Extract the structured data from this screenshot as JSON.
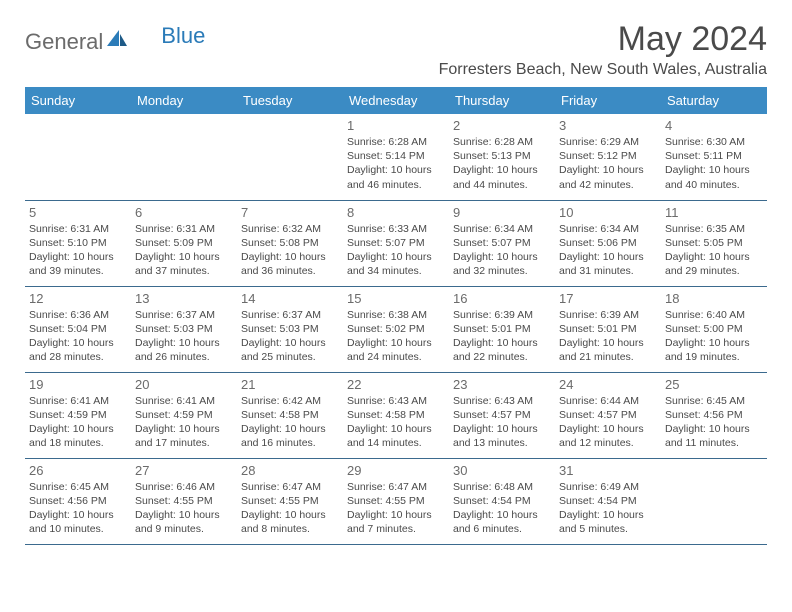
{
  "logo": {
    "text1": "General",
    "text2": "Blue"
  },
  "month_title": "May 2024",
  "location": "Forresters Beach, New South Wales, Australia",
  "colors": {
    "header_bg": "#3b8bc4",
    "border": "#3b6a8e",
    "logo_gray": "#6b6b6b",
    "logo_blue": "#2b7bb8",
    "text_dark": "#4a4a4a"
  },
  "day_headers": [
    "Sunday",
    "Monday",
    "Tuesday",
    "Wednesday",
    "Thursday",
    "Friday",
    "Saturday"
  ],
  "weeks": [
    [
      null,
      null,
      null,
      {
        "n": "1",
        "sr": "6:28 AM",
        "ss": "5:14 PM",
        "dl": "10 hours and 46 minutes."
      },
      {
        "n": "2",
        "sr": "6:28 AM",
        "ss": "5:13 PM",
        "dl": "10 hours and 44 minutes."
      },
      {
        "n": "3",
        "sr": "6:29 AM",
        "ss": "5:12 PM",
        "dl": "10 hours and 42 minutes."
      },
      {
        "n": "4",
        "sr": "6:30 AM",
        "ss": "5:11 PM",
        "dl": "10 hours and 40 minutes."
      }
    ],
    [
      {
        "n": "5",
        "sr": "6:31 AM",
        "ss": "5:10 PM",
        "dl": "10 hours and 39 minutes."
      },
      {
        "n": "6",
        "sr": "6:31 AM",
        "ss": "5:09 PM",
        "dl": "10 hours and 37 minutes."
      },
      {
        "n": "7",
        "sr": "6:32 AM",
        "ss": "5:08 PM",
        "dl": "10 hours and 36 minutes."
      },
      {
        "n": "8",
        "sr": "6:33 AM",
        "ss": "5:07 PM",
        "dl": "10 hours and 34 minutes."
      },
      {
        "n": "9",
        "sr": "6:34 AM",
        "ss": "5:07 PM",
        "dl": "10 hours and 32 minutes."
      },
      {
        "n": "10",
        "sr": "6:34 AM",
        "ss": "5:06 PM",
        "dl": "10 hours and 31 minutes."
      },
      {
        "n": "11",
        "sr": "6:35 AM",
        "ss": "5:05 PM",
        "dl": "10 hours and 29 minutes."
      }
    ],
    [
      {
        "n": "12",
        "sr": "6:36 AM",
        "ss": "5:04 PM",
        "dl": "10 hours and 28 minutes."
      },
      {
        "n": "13",
        "sr": "6:37 AM",
        "ss": "5:03 PM",
        "dl": "10 hours and 26 minutes."
      },
      {
        "n": "14",
        "sr": "6:37 AM",
        "ss": "5:03 PM",
        "dl": "10 hours and 25 minutes."
      },
      {
        "n": "15",
        "sr": "6:38 AM",
        "ss": "5:02 PM",
        "dl": "10 hours and 24 minutes."
      },
      {
        "n": "16",
        "sr": "6:39 AM",
        "ss": "5:01 PM",
        "dl": "10 hours and 22 minutes."
      },
      {
        "n": "17",
        "sr": "6:39 AM",
        "ss": "5:01 PM",
        "dl": "10 hours and 21 minutes."
      },
      {
        "n": "18",
        "sr": "6:40 AM",
        "ss": "5:00 PM",
        "dl": "10 hours and 19 minutes."
      }
    ],
    [
      {
        "n": "19",
        "sr": "6:41 AM",
        "ss": "4:59 PM",
        "dl": "10 hours and 18 minutes."
      },
      {
        "n": "20",
        "sr": "6:41 AM",
        "ss": "4:59 PM",
        "dl": "10 hours and 17 minutes."
      },
      {
        "n": "21",
        "sr": "6:42 AM",
        "ss": "4:58 PM",
        "dl": "10 hours and 16 minutes."
      },
      {
        "n": "22",
        "sr": "6:43 AM",
        "ss": "4:58 PM",
        "dl": "10 hours and 14 minutes."
      },
      {
        "n": "23",
        "sr": "6:43 AM",
        "ss": "4:57 PM",
        "dl": "10 hours and 13 minutes."
      },
      {
        "n": "24",
        "sr": "6:44 AM",
        "ss": "4:57 PM",
        "dl": "10 hours and 12 minutes."
      },
      {
        "n": "25",
        "sr": "6:45 AM",
        "ss": "4:56 PM",
        "dl": "10 hours and 11 minutes."
      }
    ],
    [
      {
        "n": "26",
        "sr": "6:45 AM",
        "ss": "4:56 PM",
        "dl": "10 hours and 10 minutes."
      },
      {
        "n": "27",
        "sr": "6:46 AM",
        "ss": "4:55 PM",
        "dl": "10 hours and 9 minutes."
      },
      {
        "n": "28",
        "sr": "6:47 AM",
        "ss": "4:55 PM",
        "dl": "10 hours and 8 minutes."
      },
      {
        "n": "29",
        "sr": "6:47 AM",
        "ss": "4:55 PM",
        "dl": "10 hours and 7 minutes."
      },
      {
        "n": "30",
        "sr": "6:48 AM",
        "ss": "4:54 PM",
        "dl": "10 hours and 6 minutes."
      },
      {
        "n": "31",
        "sr": "6:49 AM",
        "ss": "4:54 PM",
        "dl": "10 hours and 5 minutes."
      },
      null
    ]
  ],
  "labels": {
    "sunrise": "Sunrise:",
    "sunset": "Sunset:",
    "daylight": "Daylight:"
  }
}
